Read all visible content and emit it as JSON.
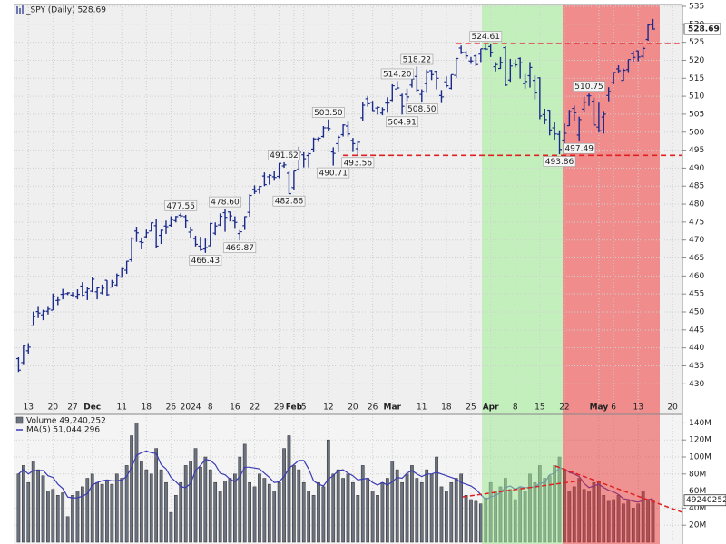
{
  "chart_data": [
    {
      "type": "ohlc",
      "title": "_SPY (Daily) 528.69",
      "color": "#1a2a8c",
      "xlim": [
        -1,
        135
      ],
      "ylim": [
        421.5,
        535.5
      ],
      "grid": true,
      "yticks": [
        430,
        435,
        440,
        445,
        450,
        455,
        460,
        465,
        470,
        475,
        480,
        485,
        490,
        495,
        500,
        505,
        510,
        515,
        520,
        525,
        530,
        535
      ],
      "xticks": [
        {
          "value": 2,
          "label": "13"
        },
        {
          "value": 7,
          "label": "20"
        },
        {
          "value": 11,
          "label": "27"
        },
        {
          "value": 15,
          "label": "Dec"
        },
        {
          "value": 21,
          "label": "11"
        },
        {
          "value": 26,
          "label": "18"
        },
        {
          "value": 31,
          "label": "26"
        },
        {
          "value": 35,
          "label": "2024"
        },
        {
          "value": 39,
          "label": "8"
        },
        {
          "value": 44,
          "label": "16"
        },
        {
          "value": 48,
          "label": "22"
        },
        {
          "value": 53,
          "label": "29"
        },
        {
          "value": 56,
          "label": "Feb"
        },
        {
          "value": 58,
          "label": "5"
        },
        {
          "value": 63,
          "label": "12"
        },
        {
          "value": 68,
          "label": "20"
        },
        {
          "value": 72,
          "label": "26"
        },
        {
          "value": 76,
          "label": "Mar"
        },
        {
          "value": 82,
          "label": "11"
        },
        {
          "value": 87,
          "label": "18"
        },
        {
          "value": 92,
          "label": "25"
        },
        {
          "value": 96,
          "label": "Apr"
        },
        {
          "value": 101,
          "label": "8"
        },
        {
          "value": 106,
          "label": "15"
        },
        {
          "value": 111,
          "label": "22"
        },
        {
          "value": 118,
          "label": "May"
        },
        {
          "value": 121,
          "label": "6"
        },
        {
          "value": 126,
          "label": "13"
        },
        {
          "value": 133,
          "label": "20"
        }
      ],
      "open": [
        437.0,
        435.9,
        439.2,
        446.3,
        450.1,
        449.2,
        450.2,
        450.5,
        453.2,
        454.9,
        455.1,
        454.7,
        454.1,
        457.2,
        455.5,
        455.8,
        455.6,
        455.3,
        458.8,
        456.9,
        457.5,
        459.7,
        461.6,
        464.5,
        472.5,
        469.5,
        470.9,
        472.5,
        474.0,
        471.3,
        473.9,
        474.1,
        475.4,
        476.9,
        476.5,
        472.2,
        470.4,
        468.3,
        467.5,
        468.4,
        471.9,
        474.2,
        477.6,
        477.8,
        475.3,
        471.8,
        474.0,
        477.7,
        484.0,
        484.0,
        487.8,
        487.6,
        487.6,
        487.7,
        490.6,
        488.6,
        484.6,
        489.6,
        493.7,
        493.5,
        495.3,
        498.1,
        498.8,
        501.2,
        494.5,
        496.8,
        499.3,
        501.7,
        497.7,
        495.4,
        504.0,
        509.3,
        508.3,
        506.7,
        505.3,
        508.1,
        508.9,
        512.0,
        510.2,
        510.5,
        513.1,
        515.5,
        510.5,
        513.5,
        517.1,
        516.9,
        510.2,
        514.0,
        512.2,
        515.8,
        523.4,
        522.1,
        519.8,
        521.2,
        521.7,
        523.2,
        523.8,
        518.2,
        517.7,
        523.5,
        514.5,
        519.2,
        520.5,
        513.5,
        515.7,
        514.4,
        515.1,
        504.9,
        506.1,
        501.2,
        499.4,
        497.8,
        501.8,
        506.6,
        499.2,
        506.4,
        510.1,
        508.6,
        501.4,
        504.2,
        510.2,
        513.8,
        517.6,
        514.4,
        517.4,
        521.8,
        522.6,
        521.1,
        525.8,
        529.9
      ],
      "high": [
        437.4,
        440.9,
        441.3,
        450.1,
        451.4,
        450.6,
        451.4,
        455.1,
        454.1,
        456.4,
        455.5,
        455.5,
        456.3,
        458.3,
        456.8,
        459.6,
        456.9,
        457.6,
        458.8,
        458.9,
        460.7,
        462.2,
        464.2,
        470.8,
        473.7,
        470.7,
        472.9,
        474.9,
        475.9,
        472.9,
        475.4,
        476.6,
        476.7,
        477.55,
        477.0,
        473.7,
        471.2,
        470.9,
        470.4,
        474.8,
        474.9,
        477.4,
        478.6,
        477.9,
        476.6,
        472.8,
        476.6,
        482.7,
        485.2,
        485.1,
        488.8,
        488.3,
        489.1,
        491.4,
        491.62,
        489.1,
        489.2,
        496.0,
        494.4,
        494.3,
        498.5,
        498.7,
        501.7,
        503.5,
        495.8,
        499.1,
        502.2,
        502.9,
        498.4,
        497.4,
        508.5,
        510.1,
        508.7,
        507.2,
        506.9,
        509.7,
        513.3,
        514.2,
        510.7,
        512.1,
        515.4,
        518.22,
        511.9,
        517.4,
        517.3,
        517.1,
        511.7,
        515.5,
        516.0,
        520.6,
        524.1,
        522.6,
        520.9,
        521.6,
        523.2,
        524.61,
        524.4,
        519.5,
        520.9,
        523.9,
        520.4,
        520.2,
        520.8,
        516.2,
        519.5,
        515.8,
        515.3,
        506.5,
        506.2,
        502.7,
        500.5,
        502.4,
        506.2,
        507.4,
        504.3,
        509.9,
        510.75,
        509.6,
        508.2,
        505.9,
        512.5,
        516.6,
        518.6,
        517.7,
        520.2,
        522.6,
        522.7,
        523.8,
        530.1,
        531.5
      ],
      "low": [
        433.3,
        435.2,
        438.4,
        446.1,
        448.3,
        447.7,
        449.3,
        450.5,
        451.9,
        453.5,
        454.7,
        454.1,
        453.5,
        454.2,
        453.3,
        455.5,
        453.5,
        454.9,
        454.3,
        456.8,
        457.2,
        459.5,
        460.6,
        463.9,
        469.5,
        467.4,
        470.5,
        472.5,
        467.8,
        468.9,
        471.7,
        473.7,
        474.9,
        476.3,
        473.3,
        470.5,
        468.2,
        467.0,
        466.43,
        468.3,
        471.4,
        473.9,
        472.3,
        475.2,
        473.1,
        469.87,
        472.8,
        476.5,
        482.8,
        482.9,
        485.0,
        485.4,
        486.5,
        487.2,
        490.1,
        482.86,
        483.8,
        489.3,
        490.2,
        490.2,
        494.4,
        497.3,
        498.5,
        500.2,
        490.71,
        494.4,
        498.8,
        498.8,
        494.5,
        493.56,
        503.0,
        507.1,
        505.9,
        504.9,
        504.7,
        505.4,
        508.6,
        512.0,
        504.91,
        508.6,
        512.4,
        511.1,
        508.5,
        510.9,
        514.5,
        511.9,
        508.1,
        512.4,
        511.9,
        515.1,
        521.7,
        520.4,
        519.0,
        518.4,
        519.5,
        522.8,
        520.9,
        516.9,
        517.6,
        512.8,
        514.0,
        518.0,
        514.9,
        512.1,
        512.4,
        509.1,
        503.6,
        502.2,
        499.1,
        497.9,
        493.86,
        495.4,
        501.7,
        503.1,
        497.49,
        505.7,
        507.3,
        501.9,
        499.9,
        499.6,
        508.6,
        513.3,
        516.4,
        514.3,
        516.7,
        519.6,
        519.7,
        520.6,
        525.4,
        528.5
      ],
      "close": [
        433.8,
        440.6,
        440.2,
        448.7,
        449.7,
        450.2,
        450.8,
        454.3,
        453.3,
        455.0,
        455.3,
        454.5,
        454.9,
        454.6,
        456.4,
        459.1,
        456.7,
        456.6,
        454.8,
        458.2,
        460.2,
        462.0,
        464.1,
        470.5,
        472.0,
        469.3,
        472.0,
        474.8,
        468.3,
        472.7,
        473.7,
        475.7,
        476.5,
        476.7,
        475.3,
        472.7,
        468.8,
        467.3,
        467.9,
        474.6,
        473.9,
        476.6,
        476.3,
        476.7,
        474.9,
        472.3,
        476.5,
        482.4,
        483.5,
        484.9,
        485.4,
        488.0,
        487.4,
        491.3,
        490.9,
        482.9,
        489.2,
        494.4,
        492.6,
        494.0,
        498.1,
        498.3,
        501.2,
        501.0,
        494.1,
        498.6,
        502.0,
        499.5,
        496.8,
        497.2,
        507.5,
        507.9,
        506.0,
        506.9,
        506.3,
        508.1,
        512.9,
        512.3,
        507.2,
        509.8,
        514.8,
        511.7,
        511.3,
        516.8,
        516.0,
        515.0,
        509.8,
        512.9,
        516.0,
        520.5,
        522.2,
        521.2,
        519.8,
        518.8,
        523.2,
        523.1,
        522.2,
        518.8,
        519.4,
        513.1,
        518.4,
        518.7,
        519.3,
        514.1,
        518.0,
        510.9,
        504.5,
        503.5,
        500.6,
        499.5,
        495.2,
        499.7,
        505.7,
        505.4,
        503.5,
        508.3,
        510.1,
        502.0,
        500.4,
        505.0,
        511.3,
        516.6,
        517.1,
        517.2,
        520.2,
        520.8,
        520.9,
        523.3,
        529.8,
        528.69
      ],
      "annotations": {
        "x": [
          33,
          38,
          42,
          45,
          54,
          55,
          63,
          64,
          69,
          77,
          78,
          81,
          82,
          95,
          110,
          114,
          116
        ],
        "values": [
          477.55,
          466.43,
          478.6,
          469.87,
          491.62,
          482.86,
          503.5,
          490.71,
          493.56,
          514.2,
          504.91,
          518.22,
          508.5,
          524.61,
          493.86,
          497.49,
          510.75
        ],
        "value_labels": [
          "477.55",
          "466.43",
          "478.60",
          "469.87",
          "491.62",
          "482.86",
          "503.50",
          "490.71",
          "493.56",
          "514.20",
          "504.91",
          "518.22",
          "508.50",
          "524.61",
          "493.86",
          "497.49",
          "510.75"
        ],
        "position": [
          "above",
          "below",
          "above",
          "below",
          "above",
          "below",
          "above",
          "below",
          "below",
          "above",
          "below",
          "above",
          "below",
          "above",
          "below",
          "below",
          "above"
        ]
      },
      "reference_lines": {
        "x": [
          89,
          66
        ],
        "values": [
          524.61,
          493.56
        ],
        "color": "#e02020"
      }
    },
    {
      "type": "bar",
      "xlim": [
        -1,
        135
      ],
      "ylim": [
        0,
        150
      ],
      "grid": true,
      "yticks": [
        {
          "value": 20,
          "label": "20M"
        },
        {
          "value": 40,
          "label": "40M"
        },
        {
          "value": 60,
          "label": "60M"
        },
        {
          "value": 80,
          "label": "80M"
        },
        {
          "value": 100,
          "label": "100M"
        },
        {
          "value": 120,
          "label": "120M"
        },
        {
          "value": 140,
          "label": "140M"
        }
      ],
      "series": [
        {
          "name": "Volume 49,240,252",
          "type": "bar",
          "color": "#6b7280",
          "last_label": "49240252",
          "values": [
            80,
            90,
            70,
            95,
            85,
            78,
            60,
            62,
            55,
            58,
            30,
            55,
            60,
            65,
            75,
            80,
            70,
            68,
            72,
            68,
            80,
            75,
            90,
            125,
            140,
            95,
            85,
            80,
            110,
            85,
            70,
            35,
            55,
            70,
            90,
            95,
            110,
            88,
            100,
            85,
            70,
            60,
            72,
            75,
            80,
            100,
            115,
            70,
            65,
            80,
            75,
            68,
            60,
            70,
            110,
            125,
            90,
            85,
            70,
            60,
            55,
            70,
            65,
            120,
            80,
            85,
            75,
            80,
            70,
            55,
            90,
            75,
            60,
            55,
            70,
            75,
            95,
            85,
            70,
            80,
            90,
            75,
            70,
            85,
            80,
            100,
            65,
            60,
            70,
            75,
            80,
            55,
            50,
            48,
            45,
            52,
            70,
            60,
            65,
            75,
            62,
            50,
            65,
            60,
            80,
            70,
            90,
            75,
            78,
            90,
            100,
            85,
            60,
            65,
            75,
            62,
            60,
            70,
            72,
            55,
            48,
            50,
            55,
            45,
            50,
            40,
            45,
            60,
            50,
            49.240252
          ]
        },
        {
          "name": "MA(5) 51,044,296",
          "type": "line",
          "color": "#3b3bb5",
          "values": [
            80,
            85,
            80,
            84,
            84,
            84,
            78,
            76,
            68,
            63,
            53,
            52,
            52,
            54,
            57,
            67,
            70,
            72,
            73,
            72,
            72,
            73,
            77,
            88,
            102,
            105,
            107,
            105,
            104,
            91,
            86,
            76,
            71,
            65,
            64,
            69,
            84,
            90,
            97,
            96,
            91,
            81,
            79,
            74,
            71,
            77,
            88,
            88,
            87,
            86,
            81,
            76,
            70,
            71,
            77,
            87,
            91,
            96,
            96,
            86,
            72,
            68,
            66,
            74,
            78,
            84,
            85,
            81,
            78,
            73,
            74,
            75,
            70,
            67,
            70,
            67,
            71,
            76,
            75,
            81,
            84,
            80,
            77,
            80,
            80,
            82,
            80,
            78,
            76,
            74,
            70,
            68,
            66,
            62,
            56,
            50,
            53,
            55,
            58,
            64,
            66,
            62,
            65,
            64,
            64,
            65,
            69,
            70,
            79,
            81,
            87,
            86,
            82,
            80,
            77,
            69,
            64,
            66,
            68,
            64,
            61,
            59,
            56,
            51,
            50,
            48,
            47,
            49,
            50,
            51.044296
          ]
        }
      ]
    }
  ]
}
